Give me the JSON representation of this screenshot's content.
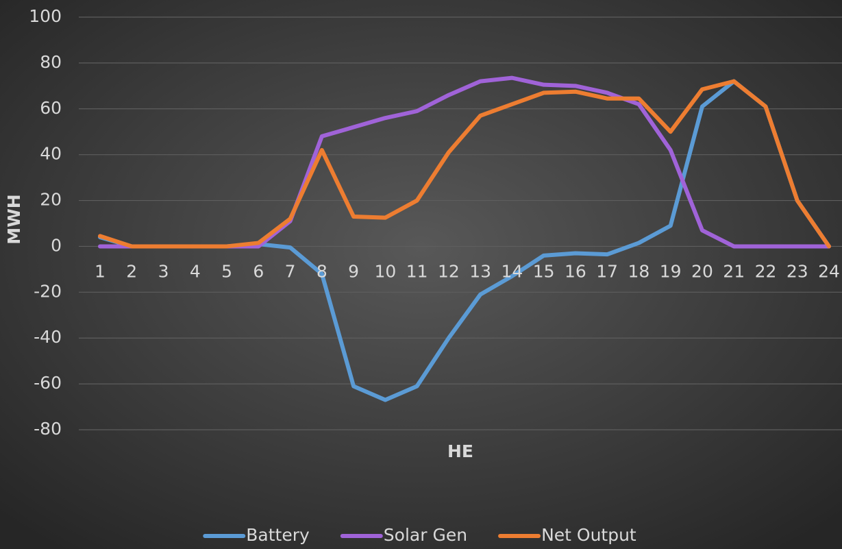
{
  "chart_data": {
    "type": "line",
    "x_label": "HE",
    "y_label": "MWH",
    "categories": [
      "1",
      "2",
      "3",
      "4",
      "5",
      "6",
      "7",
      "8",
      "9",
      "10",
      "11",
      "12",
      "13",
      "14",
      "15",
      "16",
      "17",
      "18",
      "19",
      "20",
      "21",
      "22",
      "23",
      "24"
    ],
    "series": [
      {
        "name": "Battery",
        "color": "#5b9bd5",
        "values": [
          4,
          0,
          0,
          0,
          0,
          1,
          -0.5,
          -12,
          -61,
          -67,
          -61,
          -40,
          -21,
          -13,
          -4,
          -3,
          -3.5,
          1.5,
          9,
          61,
          72,
          61,
          20,
          0
        ]
      },
      {
        "name": "Solar Gen",
        "color": "#a063d8",
        "values": [
          0,
          0,
          0,
          0,
          0,
          0,
          11,
          48,
          52,
          56,
          59,
          66,
          72,
          73.5,
          70.5,
          70,
          67,
          62,
          42,
          7,
          0,
          0,
          0,
          0
        ]
      },
      {
        "name": "Net Output",
        "color": "#ed7d31",
        "values": [
          4.5,
          0,
          0,
          0,
          0,
          1.5,
          12,
          42,
          13,
          12.5,
          20,
          41,
          57,
          62,
          67,
          67.5,
          64.5,
          64.5,
          50,
          68.5,
          72,
          61,
          20,
          0
        ]
      }
    ],
    "ylim": [
      -80,
      100
    ],
    "yticks": [
      -80,
      -60,
      -40,
      -20,
      0,
      20,
      40,
      60,
      80,
      100
    ],
    "grid": true,
    "legend": "bottom"
  }
}
